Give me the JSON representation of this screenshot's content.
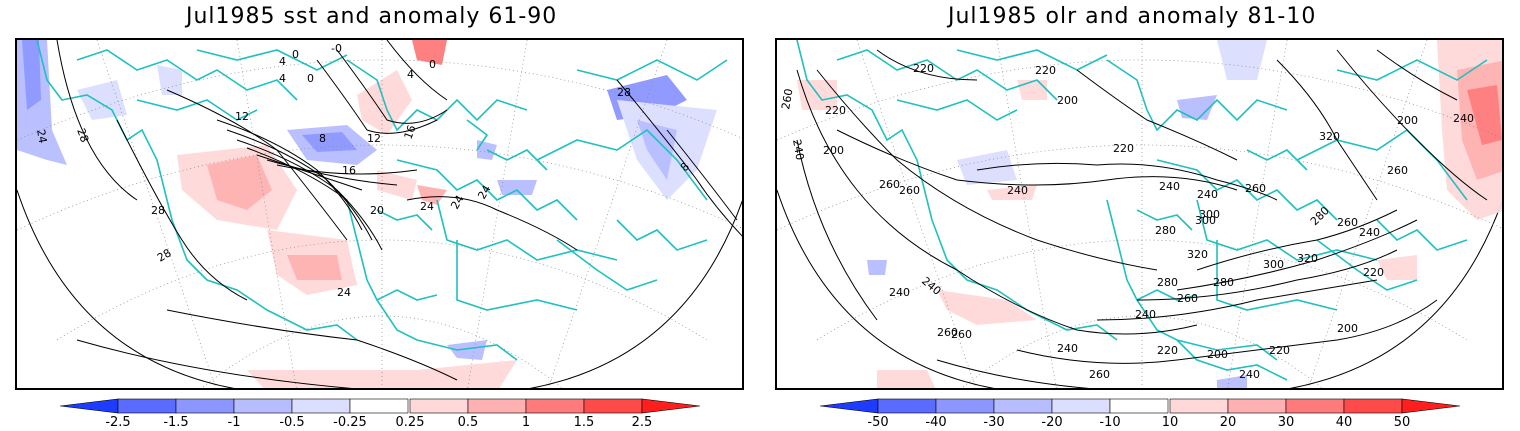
{
  "left_panel": {
    "title": "Jul1985 sst and anomaly 61-90",
    "contour_labels": [
      "24",
      "28",
      "12",
      "4",
      "0",
      "-0",
      "4",
      "0",
      "8",
      "12",
      "16",
      "16",
      "20",
      "24",
      "24",
      "24",
      "28",
      "28",
      "24",
      "28",
      "8",
      "4",
      "0"
    ],
    "colorbar": {
      "labels": [
        "-2.5",
        "-1.5",
        "-1",
        "-0.5",
        "-0.25",
        "0.25",
        "0.5",
        "1",
        "1.5",
        "2.5"
      ],
      "colors": [
        "#1e3cff",
        "#5a6bff",
        "#8c96ff",
        "#b7bdff",
        "#dcdeff",
        "#ffffff",
        "#ffd9d9",
        "#ffb0b0",
        "#ff7a7a",
        "#ff4a4a",
        "#ff1e1e"
      ]
    }
  },
  "right_panel": {
    "title": "Jul1985 olr and anomaly 81-10",
    "contour_labels": [
      "220",
      "240",
      "260",
      "200",
      "220",
      "220",
      "200",
      "240",
      "280",
      "300",
      "320",
      "320",
      "260",
      "240",
      "240",
      "220",
      "260",
      "260",
      "200",
      "240",
      "260",
      "280",
      "300",
      "280",
      "300",
      "320",
      "280",
      "260",
      "240",
      "260",
      "240",
      "220",
      "200",
      "220",
      "200",
      "220",
      "240",
      "260",
      "240",
      "260",
      "240",
      "240",
      "260"
    ],
    "colorbar": {
      "labels": [
        "-50",
        "-40",
        "-30",
        "-20",
        "-10",
        "10",
        "20",
        "30",
        "40",
        "50"
      ],
      "colors": [
        "#1e3cff",
        "#5a6bff",
        "#8c96ff",
        "#b7bdff",
        "#dcdeff",
        "#ffffff",
        "#ffd9d9",
        "#ffb0b0",
        "#ff7a7a",
        "#ff4a4a",
        "#ff1e1e"
      ]
    }
  },
  "colors": {
    "coastline": "#20c0c0",
    "contour": "#000000",
    "gridline": "#888888"
  }
}
